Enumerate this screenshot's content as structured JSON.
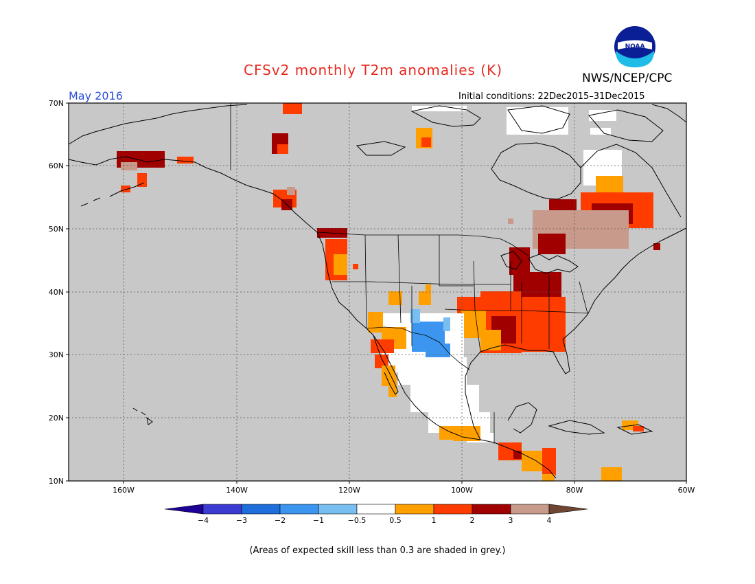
{
  "title": "CFSv2 monthly T2m anomalies (K)",
  "agency": "NWS/NCEP/CPC",
  "logo_text": "NOAA",
  "month": "May 2016",
  "initial_conditions": "Initial conditions: 22Dec2015–31Dec2015",
  "footnote": "(Areas of expected skill less than 0.3 are shaded in grey.)",
  "colors": {
    "no_skill": "#c8c8c8",
    "map_outline": "#000000",
    "grid": "#555555"
  },
  "lat_labels": [
    "70N",
    "60N",
    "50N",
    "40N",
    "30N",
    "20N",
    "10N"
  ],
  "lon_labels": [
    "160W",
    "140W",
    "120W",
    "100W",
    "80W",
    "60W"
  ],
  "legend": {
    "labels": [
      "−4",
      "−3",
      "−2",
      "−1",
      "−0.5",
      "0.5",
      "1",
      "2",
      "3",
      "4"
    ],
    "colors": [
      "#1e0096",
      "#3c3cd2",
      "#1e6edc",
      "#3c96f0",
      "#78bef0",
      "#ffffff",
      "#ffa000",
      "#ff3c00",
      "#a00000",
      "#c89a8c",
      "#6e4632"
    ]
  }
}
